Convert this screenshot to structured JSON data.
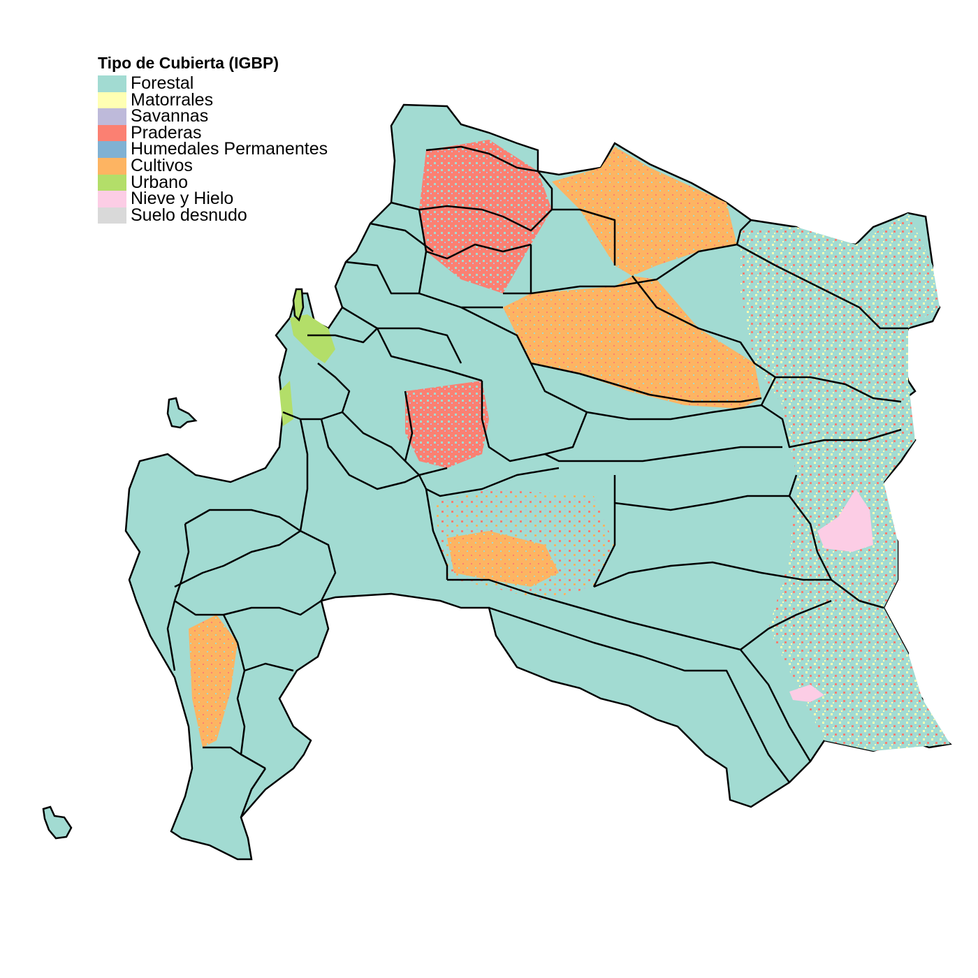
{
  "legend": {
    "title": "Tipo de Cubierta (IGBP)",
    "items": [
      {
        "label": "Forestal",
        "color": "#a2dbd2"
      },
      {
        "label": "Matorrales",
        "color": "#ffffb3"
      },
      {
        "label": "Savannas",
        "color": "#bebada"
      },
      {
        "label": "Praderas",
        "color": "#fb8072"
      },
      {
        "label": "Humedales Permanentes",
        "color": "#80b1d3"
      },
      {
        "label": "Cultivos",
        "color": "#fdb462"
      },
      {
        "label": "Urbano",
        "color": "#b3de69"
      },
      {
        "label": "Nieve y Hielo",
        "color": "#fccde5"
      },
      {
        "label": "Suelo desnudo",
        "color": "#d9d9d9"
      }
    ]
  },
  "colors": {
    "background": "#ffffff",
    "boundary": "#000000"
  }
}
